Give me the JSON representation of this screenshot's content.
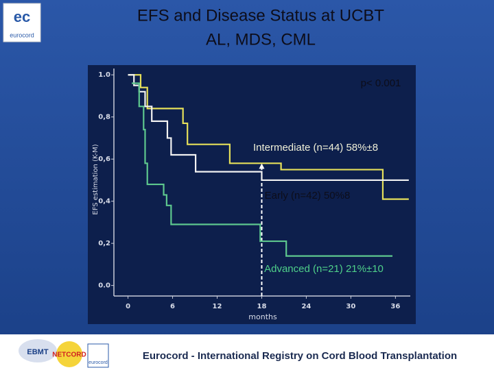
{
  "header": {
    "logo": "eurocord"
  },
  "chart_data": {
    "type": "step",
    "title": "EFS and Disease Status at UCBT",
    "subtitle": "AL, MDS, CML",
    "annotation": "p< 0.001",
    "x_label": "months",
    "y_label": "EFS estimation (K-M)",
    "xlim": [
      -1.9,
      38
    ],
    "xticks": [
      0,
      6,
      12,
      18,
      24,
      30,
      36
    ],
    "ylim": [
      -0.05,
      1.03
    ],
    "yticks": [
      {
        "value": 0,
        "label": "0.0"
      },
      {
        "value": 0.2,
        "label": "0,2"
      },
      {
        "value": 0.4,
        "label": "0,4"
      },
      {
        "value": 0.6,
        "label": "0,6"
      },
      {
        "value": 0.8,
        "label": "0,8"
      },
      {
        "value": 1,
        "label": "1.0"
      }
    ],
    "reference_x": 18,
    "series": [
      {
        "name": "Intermediate (n=44) 58%±8",
        "color": "#e6e05a",
        "x": [
          0,
          1.7,
          2.6,
          7.4,
          8.0,
          13.7,
          20.6,
          34.3,
          37.8
        ],
        "values": [
          1.0,
          0.94,
          0.84,
          0.77,
          0.67,
          0.58,
          0.55,
          0.41,
          0.41
        ]
      },
      {
        "name": "Early (n=42) 50%8",
        "color": "#f2f2f2",
        "x": [
          0,
          0.8,
          1.5,
          2.3,
          3.2,
          5.3,
          5.8,
          9.1,
          18.0,
          37.8
        ],
        "values": [
          1.0,
          0.95,
          0.92,
          0.85,
          0.78,
          0.7,
          0.62,
          0.54,
          0.5,
          0.5
        ]
      },
      {
        "name": "Advanced (n=21) 21%±10",
        "color": "#5ec88e",
        "x": [
          0.5,
          1.5,
          2.1,
          2.3,
          2.6,
          4.8,
          5.2,
          5.8,
          17.8,
          21.3,
          35.6
        ],
        "values": [
          0.96,
          0.85,
          0.74,
          0.58,
          0.48,
          0.43,
          0.38,
          0.29,
          0.21,
          0.14,
          0.14
        ]
      }
    ]
  },
  "footer": {
    "logos": [
      "EBMT",
      "NETCORD",
      "eurocord"
    ],
    "text": "Eurocord - International Registry on Cord Blood Transplantation"
  }
}
